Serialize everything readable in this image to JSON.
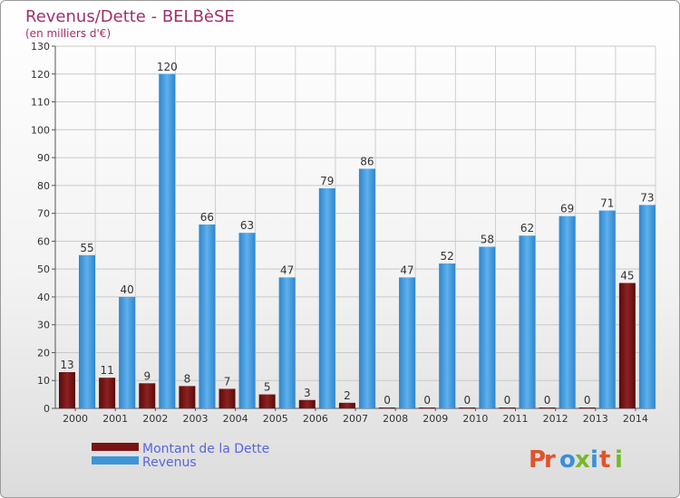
{
  "chart_data": {
    "type": "bar",
    "title": "Revenus/Dette - BELBèSE",
    "subtitle": "(en milliers d'€)",
    "categories": [
      "2000",
      "2001",
      "2002",
      "2003",
      "2004",
      "2005",
      "2006",
      "2007",
      "2008",
      "2009",
      "2010",
      "2011",
      "2012",
      "2013",
      "2014"
    ],
    "series": [
      {
        "name": "Montant de la Dette",
        "color": "#7a1414",
        "values": [
          13,
          11,
          9,
          8,
          7,
          5,
          3,
          2,
          0,
          0,
          0,
          0,
          0,
          0,
          45
        ]
      },
      {
        "name": "Revenus",
        "color": "#3d95d8",
        "values": [
          55,
          40,
          120,
          66,
          63,
          47,
          79,
          86,
          47,
          52,
          58,
          62,
          69,
          71,
          73
        ]
      }
    ],
    "ylim": [
      0,
      130
    ],
    "yticks": [
      0,
      10,
      20,
      30,
      40,
      50,
      60,
      70,
      80,
      90,
      100,
      110,
      120,
      130
    ],
    "grid": true,
    "legend_position": "bottom-left"
  },
  "branding": {
    "logo_text": "Proxiti",
    "logo_colors": [
      "#e0542a",
      "#e0542a",
      "#3a8fd8",
      "#77b82a",
      "#3a8fd8",
      "#e0542a",
      "#77b82a"
    ]
  }
}
